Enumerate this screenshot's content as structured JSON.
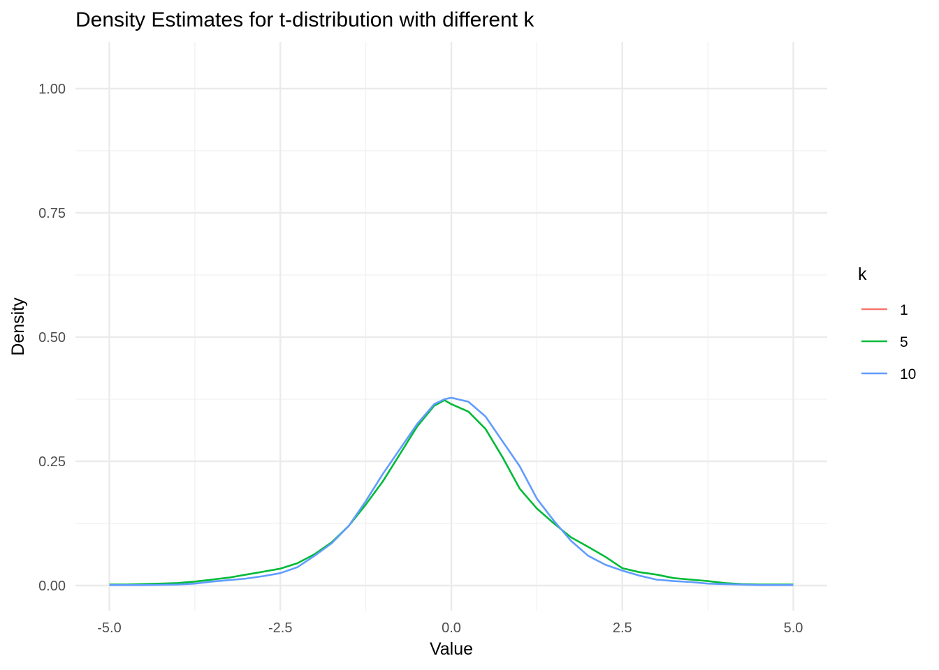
{
  "chart_data": {
    "type": "line",
    "title": "Density Estimates for t-distribution with different k",
    "xlabel": "Value",
    "ylabel": "Density",
    "xlim": [
      -5.2,
      5.2
    ],
    "ylim": [
      -0.04,
      1.1
    ],
    "x_ticks": [
      -5,
      -2.5,
      0,
      2.5,
      5
    ],
    "x_tick_labels": [
      "-5.0",
      "-2.5",
      "0.0",
      "2.5",
      "5.0"
    ],
    "y_ticks": [
      0,
      0.25,
      0.5,
      0.75,
      1
    ],
    "y_tick_labels": [
      "0.00",
      "0.25",
      "0.50",
      "0.75",
      "1.00"
    ],
    "grid": true,
    "legend": {
      "title": "k",
      "placement": "right"
    },
    "series": [
      {
        "name": "1",
        "color": "#F8766D",
        "x": [],
        "y": []
      },
      {
        "name": "5",
        "color": "#00BA38",
        "x": [
          -5,
          -4.75,
          -4.5,
          -4.25,
          -4,
          -3.75,
          -3.5,
          -3.25,
          -3,
          -2.75,
          -2.5,
          -2.25,
          -2,
          -1.75,
          -1.5,
          -1.25,
          -1,
          -0.75,
          -0.5,
          -0.25,
          -0.1,
          0,
          0.25,
          0.5,
          0.75,
          1,
          1.25,
          1.5,
          1.75,
          2,
          2.25,
          2.5,
          2.75,
          3,
          3.25,
          3.5,
          3.75,
          4,
          4.25,
          4.5,
          5
        ],
        "y": [
          0.002,
          0.002,
          0.003,
          0.004,
          0.005,
          0.008,
          0.012,
          0.016,
          0.022,
          0.028,
          0.034,
          0.045,
          0.063,
          0.087,
          0.12,
          0.163,
          0.21,
          0.265,
          0.32,
          0.362,
          0.373,
          0.365,
          0.35,
          0.315,
          0.258,
          0.195,
          0.155,
          0.125,
          0.097,
          0.078,
          0.058,
          0.035,
          0.027,
          0.022,
          0.015,
          0.012,
          0.009,
          0.005,
          0.003,
          0.002,
          0.002
        ]
      },
      {
        "name": "10",
        "color": "#619CFF",
        "x": [
          -5,
          -4.5,
          -4,
          -3.75,
          -3.5,
          -3.25,
          -3,
          -2.75,
          -2.5,
          -2.25,
          -2,
          -1.75,
          -1.5,
          -1.25,
          -1,
          -0.75,
          -0.5,
          -0.25,
          -0.1,
          0,
          0.25,
          0.5,
          0.75,
          1,
          1.25,
          1.5,
          1.75,
          2,
          2.25,
          2.5,
          2.75,
          3,
          3.25,
          3.5,
          3.75,
          4,
          4.5,
          5
        ],
        "y": [
          0.001,
          0.001,
          0.002,
          0.004,
          0.008,
          0.011,
          0.014,
          0.019,
          0.025,
          0.037,
          0.06,
          0.085,
          0.12,
          0.17,
          0.225,
          0.275,
          0.325,
          0.365,
          0.375,
          0.378,
          0.37,
          0.34,
          0.29,
          0.24,
          0.175,
          0.13,
          0.09,
          0.06,
          0.042,
          0.03,
          0.02,
          0.012,
          0.009,
          0.007,
          0.004,
          0.003,
          0.001,
          0.001
        ]
      }
    ]
  }
}
